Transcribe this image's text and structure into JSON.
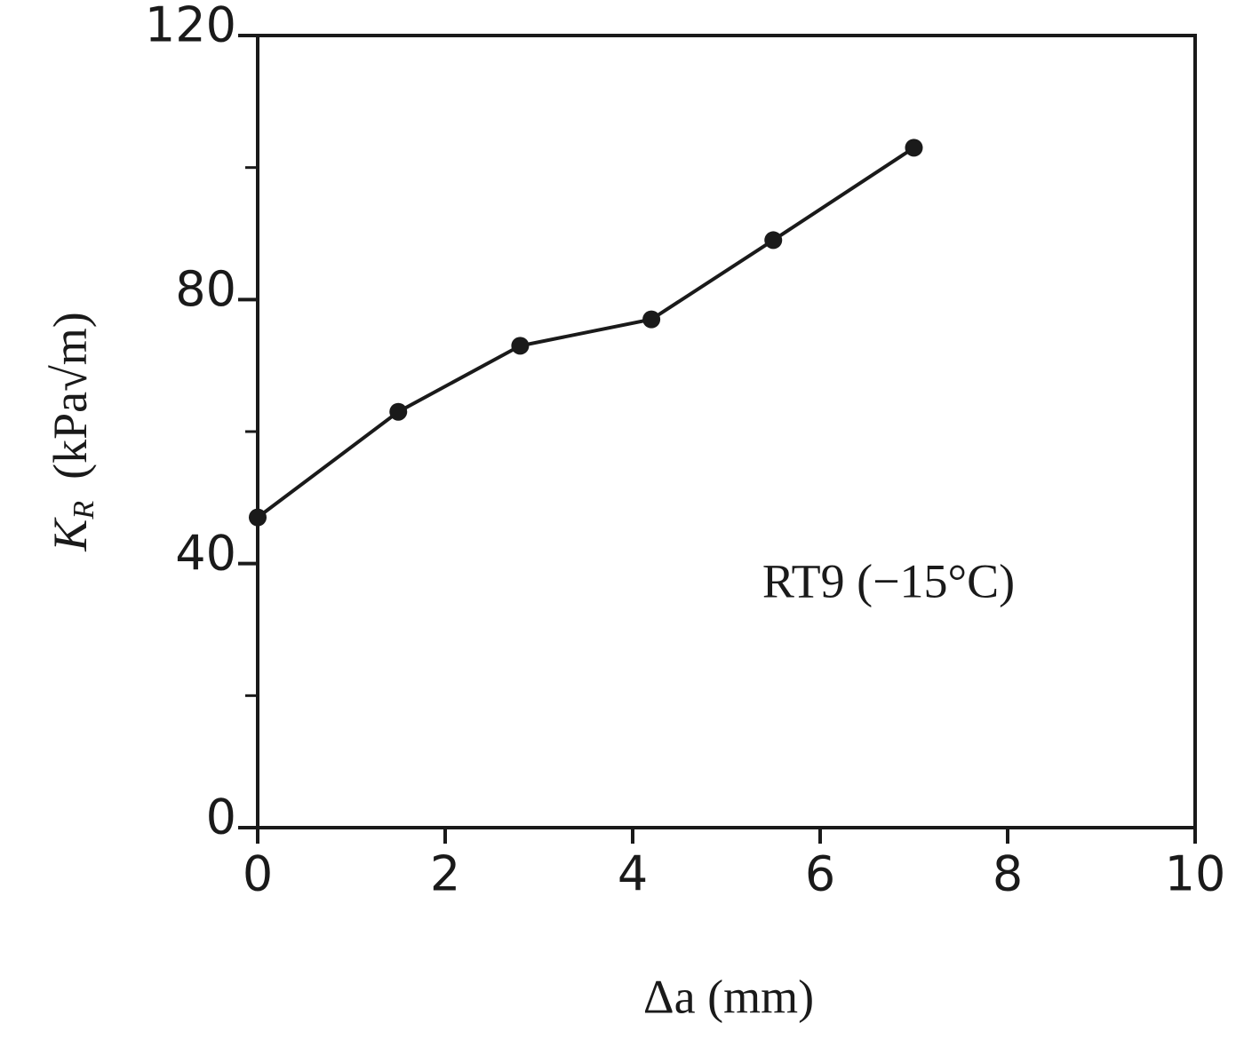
{
  "chart_data": {
    "type": "line",
    "x": [
      0,
      1.5,
      2.8,
      4.2,
      5.5,
      7
    ],
    "series": [
      {
        "color": "#1a1a1a",
        "values": [
          47,
          63,
          73,
          77,
          89,
          103
        ]
      }
    ],
    "xlim": [
      0,
      10
    ],
    "xticks": [
      0,
      2,
      4,
      6,
      8,
      10
    ],
    "ylim": [
      0,
      120
    ],
    "yticks": [
      0,
      40,
      80,
      120
    ],
    "yminorticks": [
      20,
      60,
      100
    ],
    "xlabel": "Δa (mm)",
    "ylabel_symbol": "K",
    "ylabel_subscript": "R",
    "ylabel_unit": "(kPa√m)",
    "annotation": "RT9 (−15°C)"
  }
}
